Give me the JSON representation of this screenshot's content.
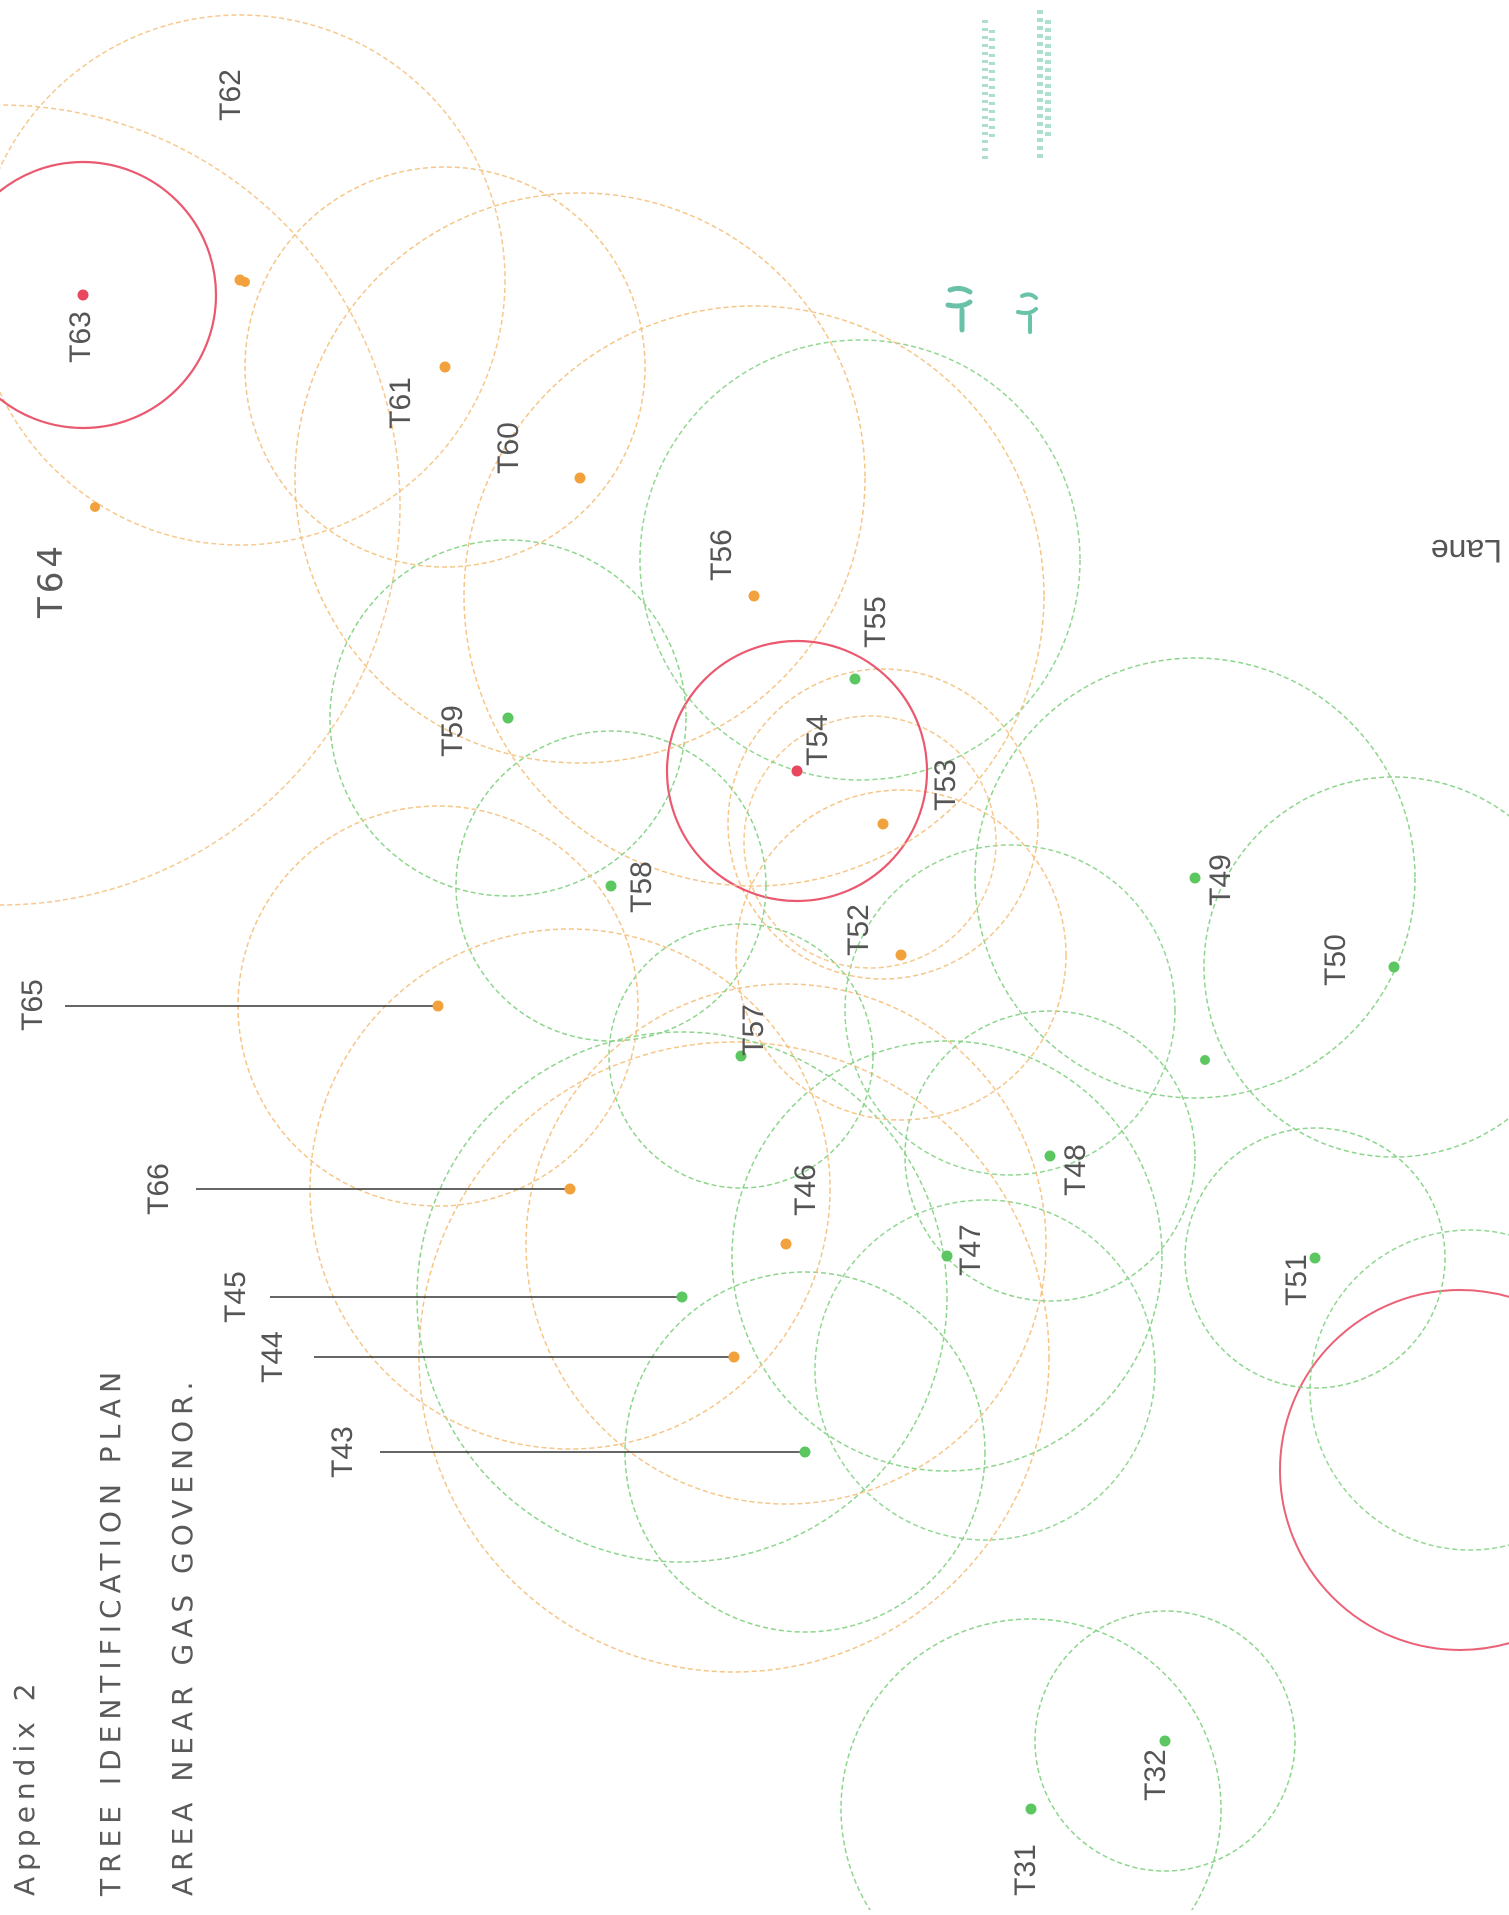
{
  "title_lines": [
    "Appendix 2",
    "TREE IDENTIFICATION PLAN",
    "AREA NEAR GAS GOVENOR."
  ],
  "road_label": "Lane",
  "handwritten_tag": "T64",
  "colors": {
    "green": "#5cc760",
    "orange": "#f2a23c",
    "red": "#e8475f",
    "orange_ring": "#f4c07a",
    "green_ring": "#7fd07f",
    "red_ring": "#e8475f",
    "text": "#555555"
  },
  "trees": [
    {
      "id": "T31",
      "category": "green"
    },
    {
      "id": "T32",
      "category": "green"
    },
    {
      "id": "T43",
      "category": "green"
    },
    {
      "id": "T44",
      "category": "orange"
    },
    {
      "id": "T45",
      "category": "green"
    },
    {
      "id": "T46",
      "category": "orange"
    },
    {
      "id": "T47",
      "category": "green"
    },
    {
      "id": "T48",
      "category": "green"
    },
    {
      "id": "T49",
      "category": "green"
    },
    {
      "id": "T50",
      "category": "green"
    },
    {
      "id": "T51",
      "category": "green"
    },
    {
      "id": "T52",
      "category": "orange"
    },
    {
      "id": "T53",
      "category": "orange"
    },
    {
      "id": "T54",
      "category": "red"
    },
    {
      "id": "T55",
      "category": "green"
    },
    {
      "id": "T56",
      "category": "orange"
    },
    {
      "id": "T57",
      "category": "green"
    },
    {
      "id": "T58",
      "category": "green"
    },
    {
      "id": "T59",
      "category": "green"
    },
    {
      "id": "T60",
      "category": "orange"
    },
    {
      "id": "T61",
      "category": "orange"
    },
    {
      "id": "T62",
      "category": "orange"
    },
    {
      "id": "T63",
      "category": "red"
    },
    {
      "id": "T65",
      "category": "orange"
    },
    {
      "id": "T66",
      "category": "orange"
    }
  ]
}
